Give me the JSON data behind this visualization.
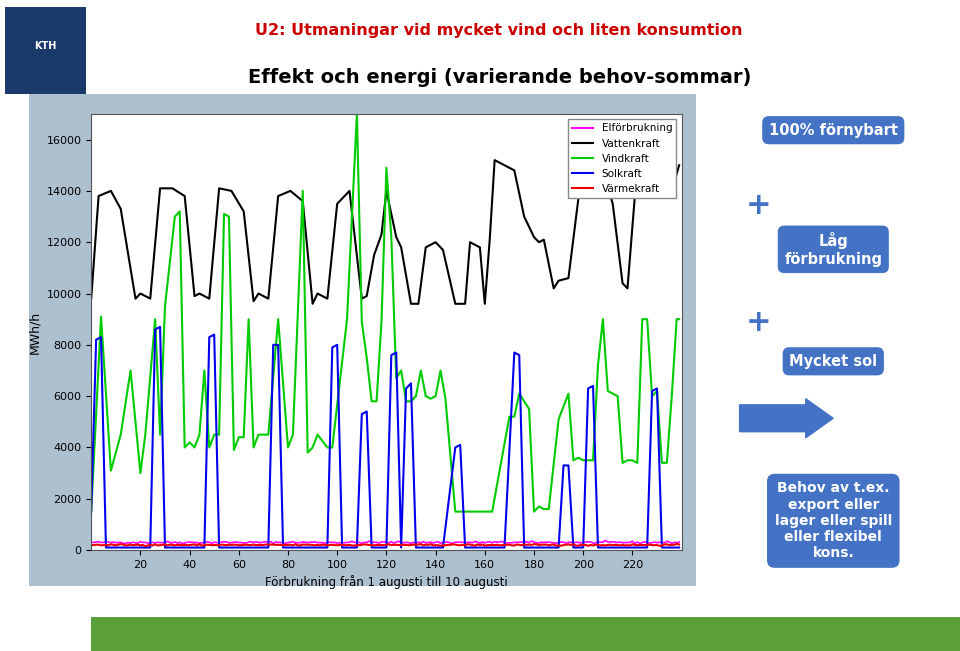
{
  "title_line1": "U2: Utmaningar vid mycket vind och liten konsumtion",
  "title_line2": "Effekt och energi (varierande behov-sommar)",
  "xlabel": "Förbrukning från 1 augusti till 10 augusti",
  "ylabel": "MWh/h",
  "legend_entries": [
    "Elförbrukning",
    "Vattenkraft",
    "Vindkraft",
    "Solkraft",
    "Värmekraft"
  ],
  "legend_colors": [
    "#FF00FF",
    "#000000",
    "#00CC00",
    "#0000EE",
    "#EE0000"
  ],
  "xlim": [
    0,
    240
  ],
  "ylim": [
    0,
    17000
  ],
  "yticks": [
    0,
    2000,
    4000,
    6000,
    8000,
    10000,
    12000,
    14000,
    16000
  ],
  "xticks": [
    20,
    40,
    60,
    80,
    100,
    120,
    140,
    160,
    180,
    200,
    220
  ],
  "chart_bg": "#ADC0D0",
  "plot_bg": "#FFFFFF",
  "box_color": "#4472C4",
  "box_color_dark": "#2E5090",
  "title1_color": "#CC0000",
  "title2_color": "#000000",
  "box1_text": "100% förnybart",
  "box2_text": "Låg\nförbrukning",
  "box3_text": "Mycket sol",
  "box4_text": "Behov av t.ex.\nexport eller\nlager eller spill\neller flexibel\nkons.",
  "green_bar_color": "#5B9F3A",
  "outer_bg": "#FFFFFF"
}
